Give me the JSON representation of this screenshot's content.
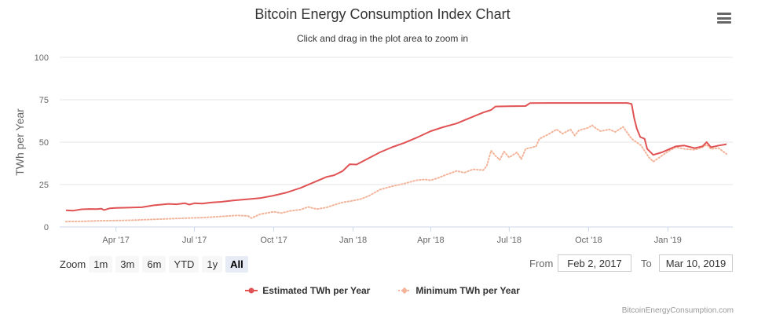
{
  "header": {
    "title": "Bitcoin Energy Consumption Index Chart",
    "subtitle": "Click and drag in the plot area to zoom in"
  },
  "range_selector": {
    "zoom_label": "Zoom",
    "buttons": [
      "1m",
      "3m",
      "6m",
      "YTD",
      "1y",
      "All"
    ],
    "active": "All",
    "from_label": "From",
    "from_value": "Feb 2, 2017",
    "to_label": "To",
    "to_value": "Mar 10, 2019"
  },
  "credits": "BitcoinEnergyConsumption.com",
  "colors": {
    "estimated": "#e05253",
    "minimum": "#f4b49a",
    "grid": "#e6e6e6",
    "axis_text": "#666666"
  },
  "chart_data": {
    "type": "line",
    "title": "Bitcoin Energy Consumption Index Chart",
    "xlabel": "",
    "ylabel": "TWh per Year",
    "ylim": [
      0,
      100
    ],
    "y_ticks": [
      0,
      25,
      50,
      75,
      100
    ],
    "x_ticks": [
      {
        "label": "Apr '17",
        "date": "2017-04-01"
      },
      {
        "label": "Jul '17",
        "date": "2017-07-01"
      },
      {
        "label": "Oct '17",
        "date": "2017-10-01"
      },
      {
        "label": "Jan '18",
        "date": "2018-01-01"
      },
      {
        "label": "Apr '18",
        "date": "2018-04-01"
      },
      {
        "label": "Jul '18",
        "date": "2018-07-01"
      },
      {
        "label": "Oct '18",
        "date": "2018-10-01"
      },
      {
        "label": "Jan '19",
        "date": "2019-01-01"
      }
    ],
    "x_range": [
      "2017-02-02",
      "2019-03-10"
    ],
    "series": [
      {
        "name": "Estimated TWh per Year",
        "style": "solid",
        "points": [
          [
            "2017-02-02",
            9.8
          ],
          [
            "2017-02-10",
            9.6
          ],
          [
            "2017-02-20",
            10.4
          ],
          [
            "2017-03-01",
            10.6
          ],
          [
            "2017-03-10",
            10.5
          ],
          [
            "2017-03-15",
            10.8
          ],
          [
            "2017-03-18",
            10.0
          ],
          [
            "2017-03-25",
            11.0
          ],
          [
            "2017-04-01",
            11.2
          ],
          [
            "2017-04-15",
            11.4
          ],
          [
            "2017-05-01",
            11.6
          ],
          [
            "2017-05-15",
            12.8
          ],
          [
            "2017-06-01",
            13.6
          ],
          [
            "2017-06-10",
            13.4
          ],
          [
            "2017-06-20",
            14.0
          ],
          [
            "2017-06-25",
            13.2
          ],
          [
            "2017-07-01",
            14.0
          ],
          [
            "2017-07-10",
            13.8
          ],
          [
            "2017-07-20",
            14.4
          ],
          [
            "2017-08-01",
            14.8
          ],
          [
            "2017-08-15",
            15.6
          ],
          [
            "2017-09-01",
            16.4
          ],
          [
            "2017-09-15",
            17.0
          ],
          [
            "2017-10-01",
            18.5
          ],
          [
            "2017-10-15",
            20.2
          ],
          [
            "2017-11-01",
            23.0
          ],
          [
            "2017-11-15",
            26.0
          ],
          [
            "2017-12-01",
            29.5
          ],
          [
            "2017-12-10",
            30.5
          ],
          [
            "2017-12-20",
            33.0
          ],
          [
            "2017-12-28",
            37.0
          ],
          [
            "2018-01-05",
            36.8
          ],
          [
            "2018-01-15",
            39.5
          ],
          [
            "2018-02-01",
            44.0
          ],
          [
            "2018-02-15",
            47.0
          ],
          [
            "2018-03-01",
            49.5
          ],
          [
            "2018-03-15",
            52.5
          ],
          [
            "2018-04-01",
            56.5
          ],
          [
            "2018-04-15",
            58.8
          ],
          [
            "2018-05-01",
            61.0
          ],
          [
            "2018-05-15",
            64.0
          ],
          [
            "2018-06-01",
            67.5
          ],
          [
            "2018-06-10",
            69.0
          ],
          [
            "2018-06-15",
            71.0
          ],
          [
            "2018-07-01",
            71.2
          ],
          [
            "2018-07-20",
            71.3
          ],
          [
            "2018-07-25",
            73.0
          ],
          [
            "2018-08-15",
            73.1
          ],
          [
            "2018-09-15",
            73.1
          ],
          [
            "2018-10-15",
            73.1
          ],
          [
            "2018-11-15",
            73.1
          ],
          [
            "2018-11-20",
            72.5
          ],
          [
            "2018-11-23",
            64.0
          ],
          [
            "2018-11-26",
            58.0
          ],
          [
            "2018-11-30",
            53.0
          ],
          [
            "2018-12-05",
            52.0
          ],
          [
            "2018-12-08",
            46.0
          ],
          [
            "2018-12-15",
            42.5
          ],
          [
            "2018-12-25",
            44.0
          ],
          [
            "2019-01-01",
            45.5
          ],
          [
            "2019-01-10",
            47.5
          ],
          [
            "2019-01-20",
            48.0
          ],
          [
            "2019-02-01",
            46.5
          ],
          [
            "2019-02-10",
            47.5
          ],
          [
            "2019-02-15",
            50.0
          ],
          [
            "2019-02-20",
            47.0
          ],
          [
            "2019-03-01",
            48.0
          ],
          [
            "2019-03-10",
            48.8
          ]
        ]
      },
      {
        "name": "Minimum TWh per Year",
        "style": "dotted",
        "points": [
          [
            "2017-02-02",
            3.2
          ],
          [
            "2017-02-20",
            3.3
          ],
          [
            "2017-03-10",
            3.6
          ],
          [
            "2017-04-01",
            3.8
          ],
          [
            "2017-04-20",
            4.0
          ],
          [
            "2017-05-10",
            4.4
          ],
          [
            "2017-06-01",
            4.8
          ],
          [
            "2017-06-20",
            5.2
          ],
          [
            "2017-07-10",
            5.5
          ],
          [
            "2017-08-01",
            6.2
          ],
          [
            "2017-08-20",
            6.8
          ],
          [
            "2017-09-01",
            6.5
          ],
          [
            "2017-09-05",
            5.2
          ],
          [
            "2017-09-15",
            7.5
          ],
          [
            "2017-10-01",
            9.0
          ],
          [
            "2017-10-10",
            8.2
          ],
          [
            "2017-10-20",
            9.5
          ],
          [
            "2017-11-01",
            10.2
          ],
          [
            "2017-11-10",
            11.8
          ],
          [
            "2017-11-20",
            10.5
          ],
          [
            "2017-12-01",
            11.5
          ],
          [
            "2017-12-10",
            13.0
          ],
          [
            "2017-12-20",
            14.5
          ],
          [
            "2018-01-01",
            15.5
          ],
          [
            "2018-01-10",
            16.5
          ],
          [
            "2018-01-20",
            18.5
          ],
          [
            "2018-02-01",
            22.0
          ],
          [
            "2018-02-15",
            24.0
          ],
          [
            "2018-03-01",
            25.5
          ],
          [
            "2018-03-15",
            27.5
          ],
          [
            "2018-03-25",
            28.0
          ],
          [
            "2018-04-01",
            27.5
          ],
          [
            "2018-04-10",
            29.0
          ],
          [
            "2018-04-20",
            31.0
          ],
          [
            "2018-05-01",
            33.0
          ],
          [
            "2018-05-10",
            32.0
          ],
          [
            "2018-05-20",
            34.0
          ],
          [
            "2018-06-01",
            33.5
          ],
          [
            "2018-06-05",
            36.0
          ],
          [
            "2018-06-10",
            45.0
          ],
          [
            "2018-06-15",
            42.0
          ],
          [
            "2018-06-20",
            39.5
          ],
          [
            "2018-06-25",
            44.5
          ],
          [
            "2018-07-01",
            41.0
          ],
          [
            "2018-07-10",
            44.0
          ],
          [
            "2018-07-15",
            40.0
          ],
          [
            "2018-07-20",
            46.0
          ],
          [
            "2018-08-01",
            47.5
          ],
          [
            "2018-08-05",
            52.0
          ],
          [
            "2018-08-15",
            54.5
          ],
          [
            "2018-08-25",
            57.5
          ],
          [
            "2018-09-01",
            55.0
          ],
          [
            "2018-09-10",
            57.5
          ],
          [
            "2018-09-15",
            54.0
          ],
          [
            "2018-09-20",
            57.0
          ],
          [
            "2018-10-01",
            58.5
          ],
          [
            "2018-10-05",
            60.0
          ],
          [
            "2018-10-10",
            58.0
          ],
          [
            "2018-10-15",
            56.5
          ],
          [
            "2018-10-25",
            57.5
          ],
          [
            "2018-11-01",
            56.0
          ],
          [
            "2018-11-10",
            59.0
          ],
          [
            "2018-11-20",
            52.0
          ],
          [
            "2018-12-01",
            48.0
          ],
          [
            "2018-12-10",
            41.0
          ],
          [
            "2018-12-15",
            38.5
          ],
          [
            "2018-12-25",
            42.0
          ],
          [
            "2019-01-01",
            44.5
          ],
          [
            "2019-01-10",
            47.0
          ],
          [
            "2019-01-20",
            46.0
          ],
          [
            "2019-02-01",
            45.5
          ],
          [
            "2019-02-10",
            47.0
          ],
          [
            "2019-02-15",
            48.5
          ],
          [
            "2019-02-20",
            46.0
          ],
          [
            "2019-03-01",
            46.5
          ],
          [
            "2019-03-10",
            43.0
          ]
        ]
      }
    ]
  }
}
